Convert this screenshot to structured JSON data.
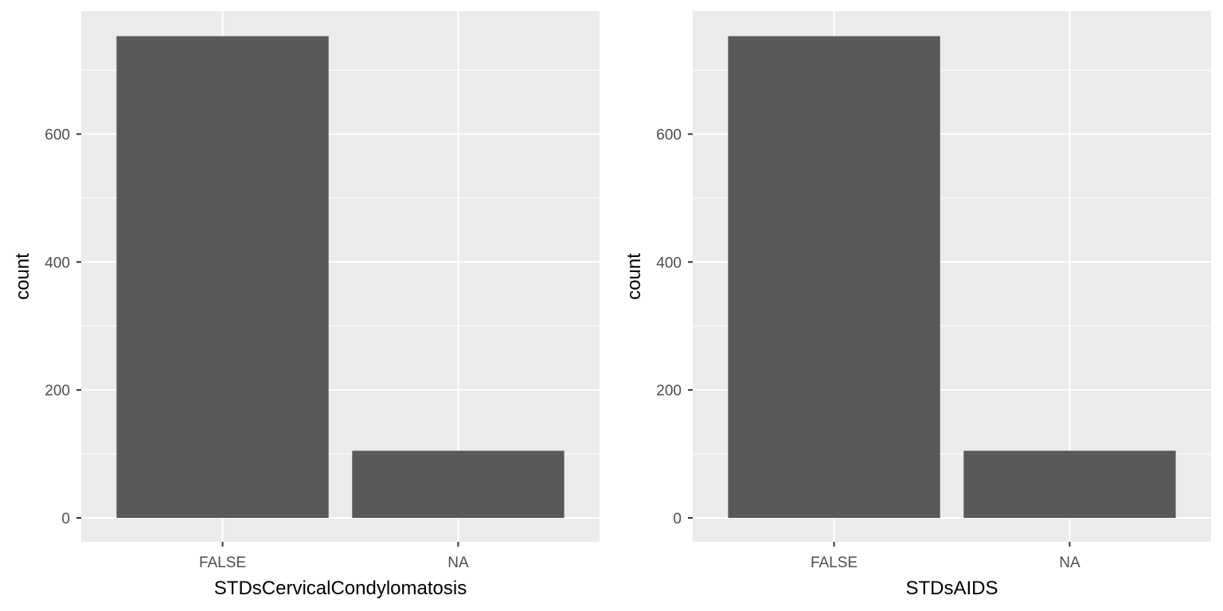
{
  "chart_data": [
    {
      "type": "bar",
      "categories": [
        "FALSE",
        "NA"
      ],
      "values": [
        753,
        105
      ],
      "xlabel": "STDsCervicalCondylomatosis",
      "ylabel": "count",
      "ylim": [
        0,
        790
      ],
      "y_ticks": [
        0,
        200,
        400,
        600
      ],
      "grid": true,
      "panel_background": "#ebebeb",
      "grid_color": "#ffffff",
      "bar_color": "#595959"
    },
    {
      "type": "bar",
      "categories": [
        "FALSE",
        "NA"
      ],
      "values": [
        753,
        105
      ],
      "xlabel": "STDsAIDS",
      "ylabel": "count",
      "ylim": [
        0,
        790
      ],
      "y_ticks": [
        0,
        200,
        400,
        600
      ],
      "grid": true,
      "panel_background": "#ebebeb",
      "grid_color": "#ffffff",
      "bar_color": "#595959"
    }
  ]
}
